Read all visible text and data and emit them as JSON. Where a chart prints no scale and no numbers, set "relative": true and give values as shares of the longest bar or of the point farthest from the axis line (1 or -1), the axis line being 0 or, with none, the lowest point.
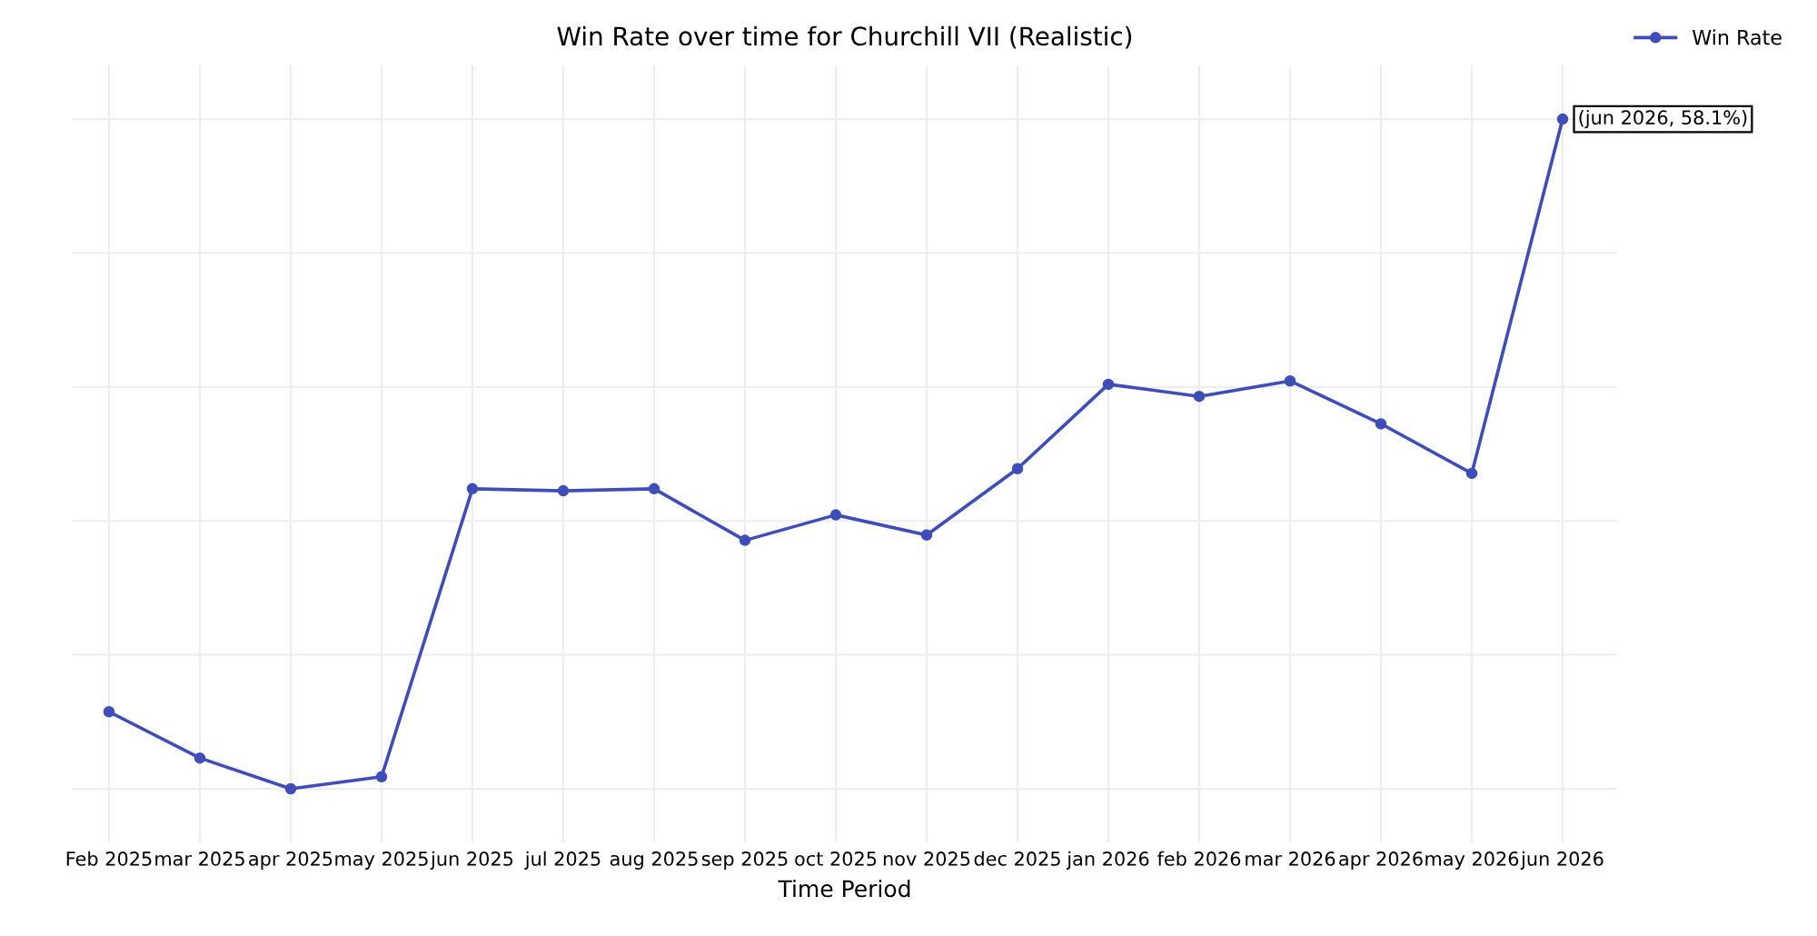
{
  "chart_data": {
    "type": "line",
    "title": "Win Rate over time for Churchill VII (Realistic)",
    "xlabel": "Time Period",
    "categories": [
      "Feb 2025",
      "mar 2025",
      "apr 2025",
      "may 2025",
      "jun 2025",
      "jul 2025",
      "aug 2025",
      "sep 2025",
      "oct 2025",
      "nov 2025",
      "dec 2025",
      "jan 2026",
      "feb 2026",
      "mar 2026",
      "apr 2026",
      "may 2026",
      "jun 2026"
    ],
    "series": [
      {
        "name": "Win Rate",
        "color": "#3f4db8",
        "values": [
          0.115,
          0.046,
          0,
          0.018,
          0.448,
          0.445,
          0.448,
          0.371,
          0.409,
          0.379,
          0.478,
          0.604,
          0.586,
          0.609,
          0.545,
          0.471,
          1
        ]
      }
    ],
    "relative": true,
    "annotations": [
      {
        "text": "(jun 2026, 58.1%)",
        "x": "jun 2026",
        "y": 1
      }
    ],
    "grid": true,
    "legend": "top right",
    "marker": "circle",
    "line_style": "solid"
  }
}
